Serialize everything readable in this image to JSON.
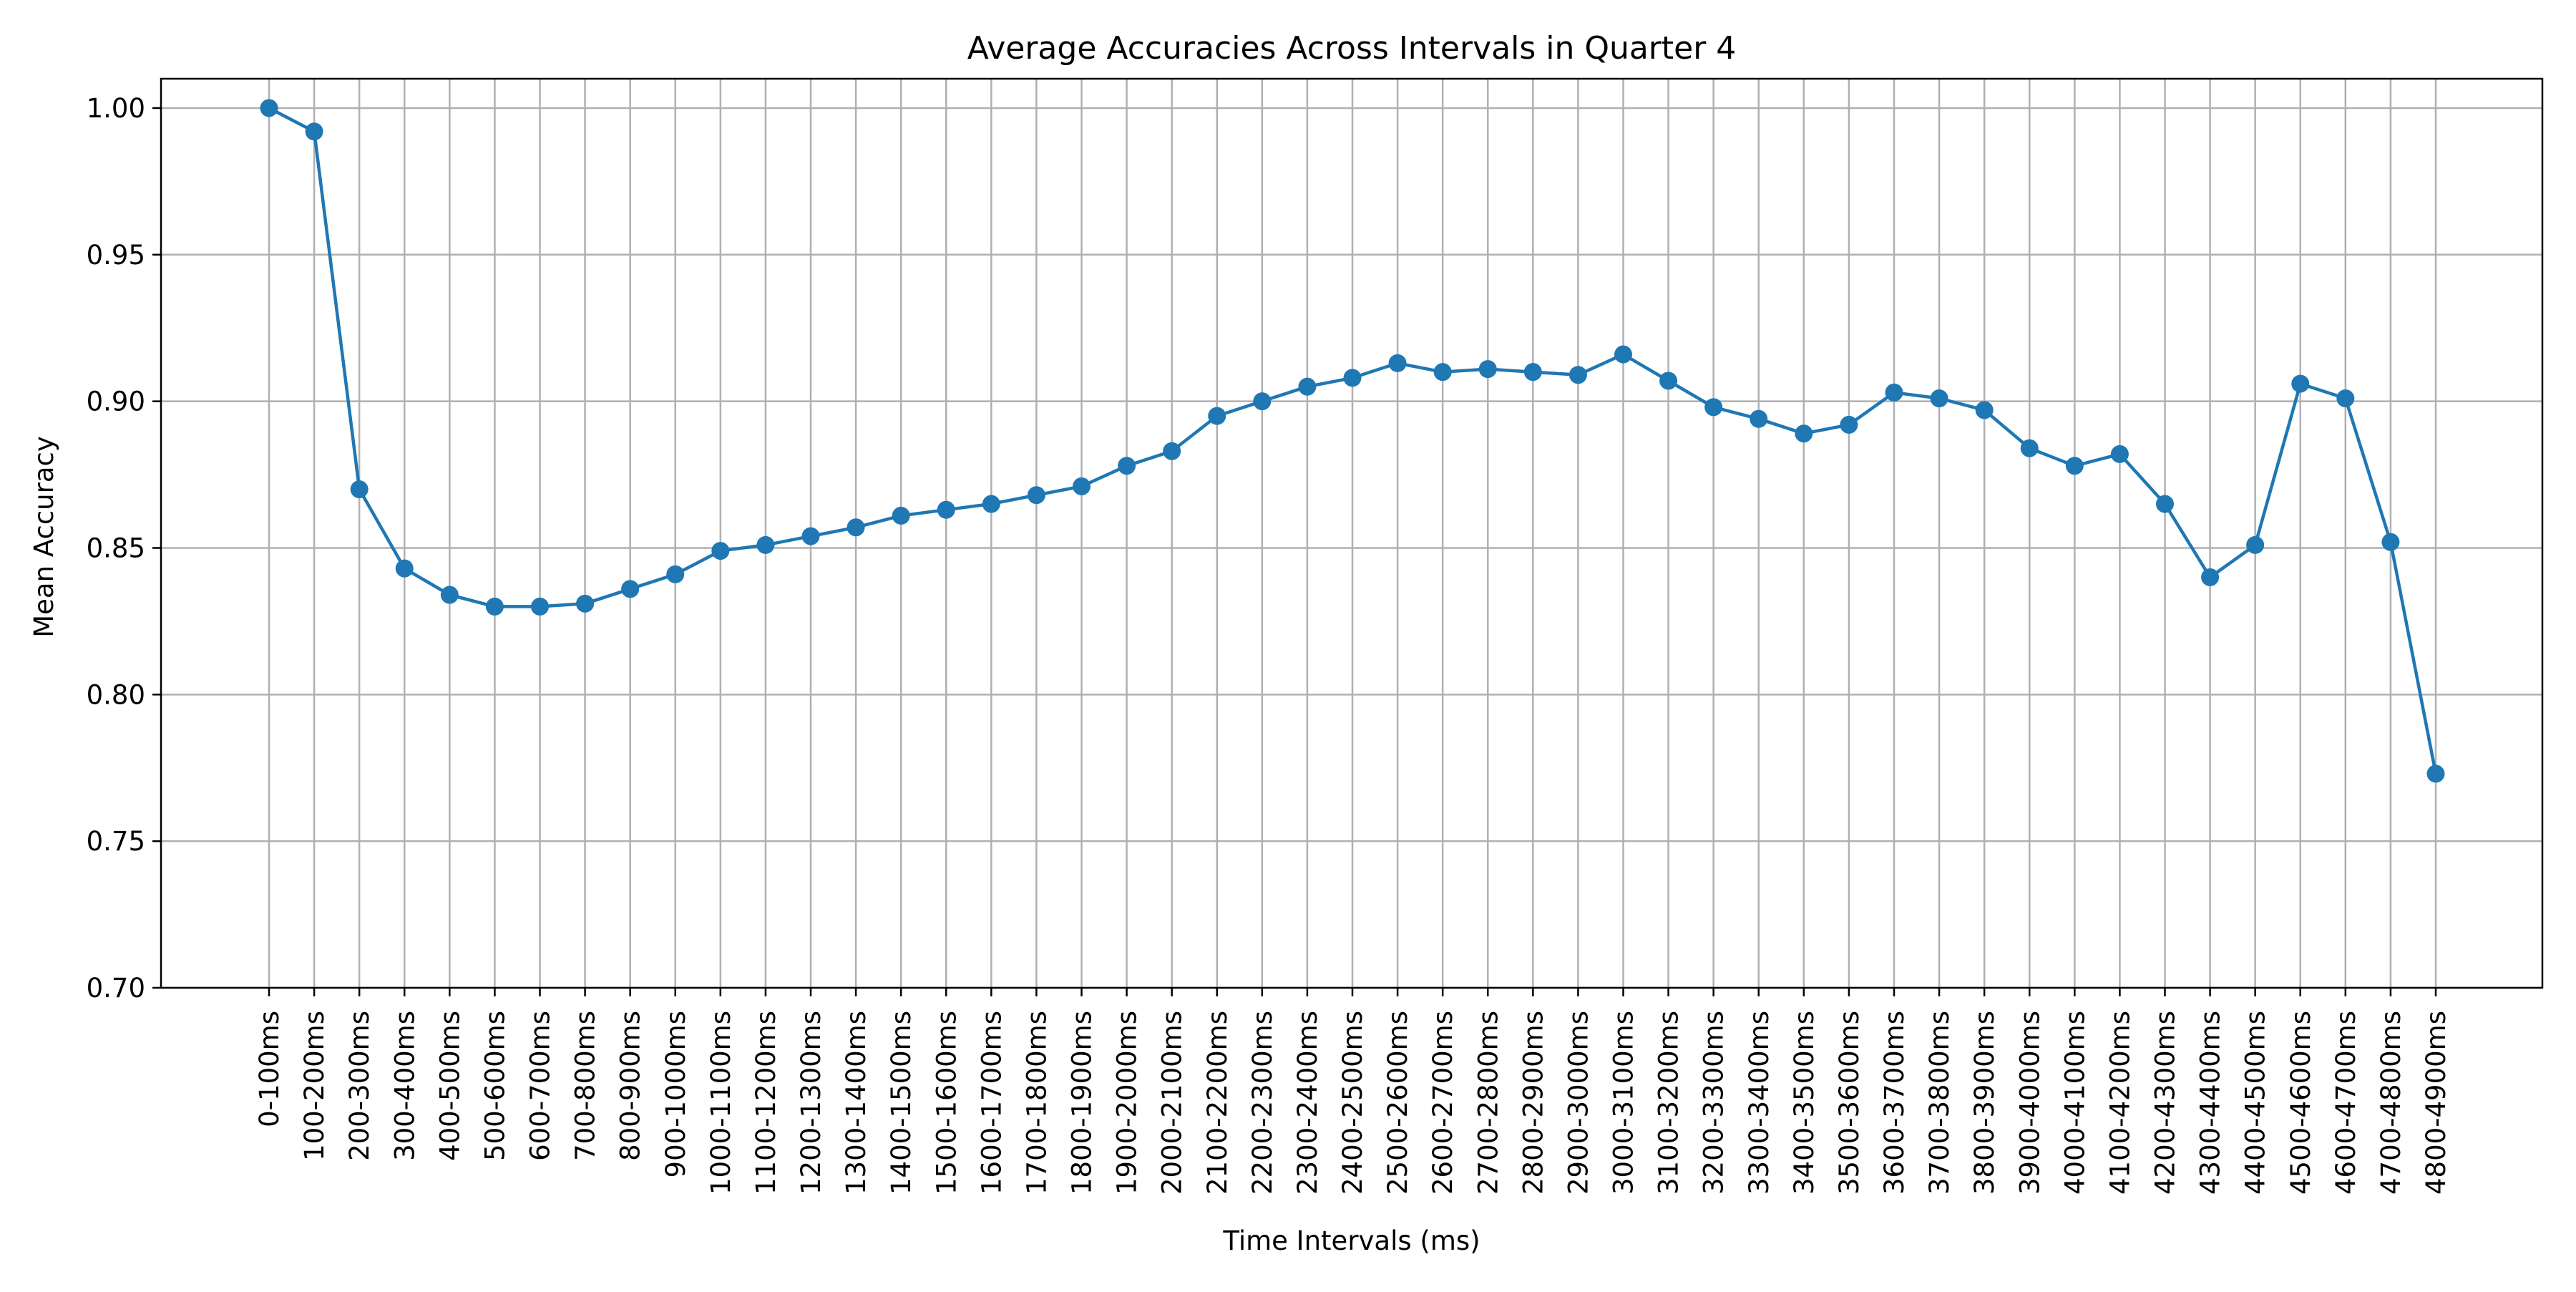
{
  "chart_data": {
    "type": "line",
    "title": "Average Accuracies Across Intervals in Quarter 4",
    "xlabel": "Time Intervals (ms)",
    "ylabel": "Mean Accuracy",
    "ylim": [
      0.7,
      1.01
    ],
    "yticks": [
      "0.70",
      "0.75",
      "0.80",
      "0.85",
      "0.90",
      "0.95",
      "1.00"
    ],
    "grid": true,
    "legend": "none",
    "categories": [
      "0-100ms",
      "100-200ms",
      "200-300ms",
      "300-400ms",
      "400-500ms",
      "500-600ms",
      "600-700ms",
      "700-800ms",
      "800-900ms",
      "900-1000ms",
      "1000-1100ms",
      "1100-1200ms",
      "1200-1300ms",
      "1300-1400ms",
      "1400-1500ms",
      "1500-1600ms",
      "1600-1700ms",
      "1700-1800ms",
      "1800-1900ms",
      "1900-2000ms",
      "2000-2100ms",
      "2100-2200ms",
      "2200-2300ms",
      "2300-2400ms",
      "2400-2500ms",
      "2500-2600ms",
      "2600-2700ms",
      "2700-2800ms",
      "2800-2900ms",
      "2900-3000ms",
      "3000-3100ms",
      "3100-3200ms",
      "3200-3300ms",
      "3300-3400ms",
      "3400-3500ms",
      "3500-3600ms",
      "3600-3700ms",
      "3700-3800ms",
      "3800-3900ms",
      "3900-4000ms",
      "4000-4100ms",
      "4100-4200ms",
      "4200-4300ms",
      "4300-4400ms",
      "4400-4500ms",
      "4500-4600ms",
      "4600-4700ms",
      "4700-4800ms",
      "4800-4900ms"
    ],
    "series": [
      {
        "color": "#1f77b4",
        "values": [
          1.0,
          0.992,
          0.87,
          0.843,
          0.834,
          0.83,
          0.83,
          0.831,
          0.836,
          0.841,
          0.849,
          0.851,
          0.854,
          0.857,
          0.861,
          0.863,
          0.865,
          0.868,
          0.871,
          0.878,
          0.883,
          0.895,
          0.9,
          0.905,
          0.908,
          0.913,
          0.91,
          0.911,
          0.91,
          0.909,
          0.916,
          0.907,
          0.898,
          0.894,
          0.889,
          0.892,
          0.903,
          0.901,
          0.897,
          0.884,
          0.878,
          0.882,
          0.865,
          0.84,
          0.851,
          0.906,
          0.901,
          0.852,
          0.773
        ]
      }
    ],
    "colors": {
      "grid": "#b0b0b0",
      "axes": "#000000",
      "background": "#ffffff"
    }
  }
}
